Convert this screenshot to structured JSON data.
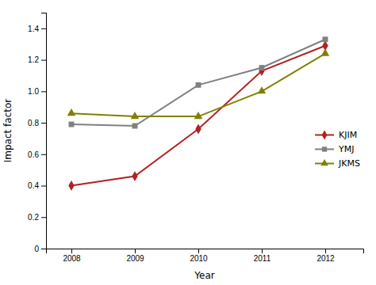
{
  "chart_data": {
    "type": "line",
    "x_label": "Year",
    "y_label": "Impact factor",
    "x": [
      2008,
      2009,
      2010,
      2011,
      2012
    ],
    "series": [
      {
        "name": "KJIM",
        "color": "#b22222",
        "marker": "diamond",
        "values": [
          0.4,
          0.46,
          0.76,
          1.13,
          1.29
        ]
      },
      {
        "name": "YMJ",
        "color": "#808080",
        "marker": "square",
        "values": [
          0.79,
          0.78,
          1.04,
          1.15,
          1.33
        ]
      },
      {
        "name": "JKMS",
        "color": "#808000",
        "marker": "triangle",
        "values": [
          0.86,
          0.84,
          0.84,
          1.0,
          1.24
        ]
      }
    ],
    "xlim": [
      2007.6,
      2012.6
    ],
    "xticks": [
      2008,
      2009,
      2010,
      2011,
      2012
    ],
    "ylim": [
      0,
      1.5
    ],
    "yticks": [
      0,
      0.2,
      0.4,
      0.6,
      0.8,
      {
        "value": 1.0,
        "label": "1.0"
      },
      1.2,
      1.4
    ],
    "grid": false,
    "legend": "right"
  }
}
